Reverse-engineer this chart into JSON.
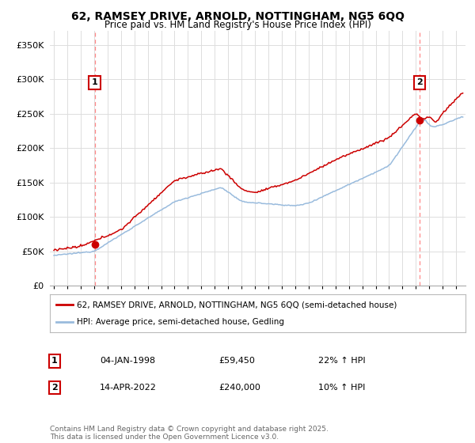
{
  "title1": "62, RAMSEY DRIVE, ARNOLD, NOTTINGHAM, NG5 6QQ",
  "title2": "Price paid vs. HM Land Registry's House Price Index (HPI)",
  "legend_line1": "62, RAMSEY DRIVE, ARNOLD, NOTTINGHAM, NG5 6QQ (semi-detached house)",
  "legend_line2": "HPI: Average price, semi-detached house, Gedling",
  "sale1_label": "1",
  "sale1_date": "04-JAN-1998",
  "sale1_price": "£59,450",
  "sale1_hpi": "22% ↑ HPI",
  "sale2_label": "2",
  "sale2_date": "14-APR-2022",
  "sale2_price": "£240,000",
  "sale2_hpi": "10% ↑ HPI",
  "copyright": "Contains HM Land Registry data © Crown copyright and database right 2025.\nThis data is licensed under the Open Government Licence v3.0.",
  "red_color": "#cc0000",
  "blue_color": "#99bbdd",
  "vline_color": "#ff8888",
  "background": "#ffffff",
  "grid_color": "#dddddd",
  "ylim": [
    0,
    370000
  ],
  "yticks": [
    0,
    50000,
    100000,
    150000,
    200000,
    250000,
    300000,
    350000
  ],
  "ytick_labels": [
    "£0",
    "£50K",
    "£100K",
    "£150K",
    "£200K",
    "£250K",
    "£300K",
    "£350K"
  ],
  "sale1_year": 1998.04,
  "sale1_value": 59450,
  "sale2_year": 2022.29,
  "sale2_value": 240000,
  "xlim_left": 1994.7,
  "xlim_right": 2025.7
}
